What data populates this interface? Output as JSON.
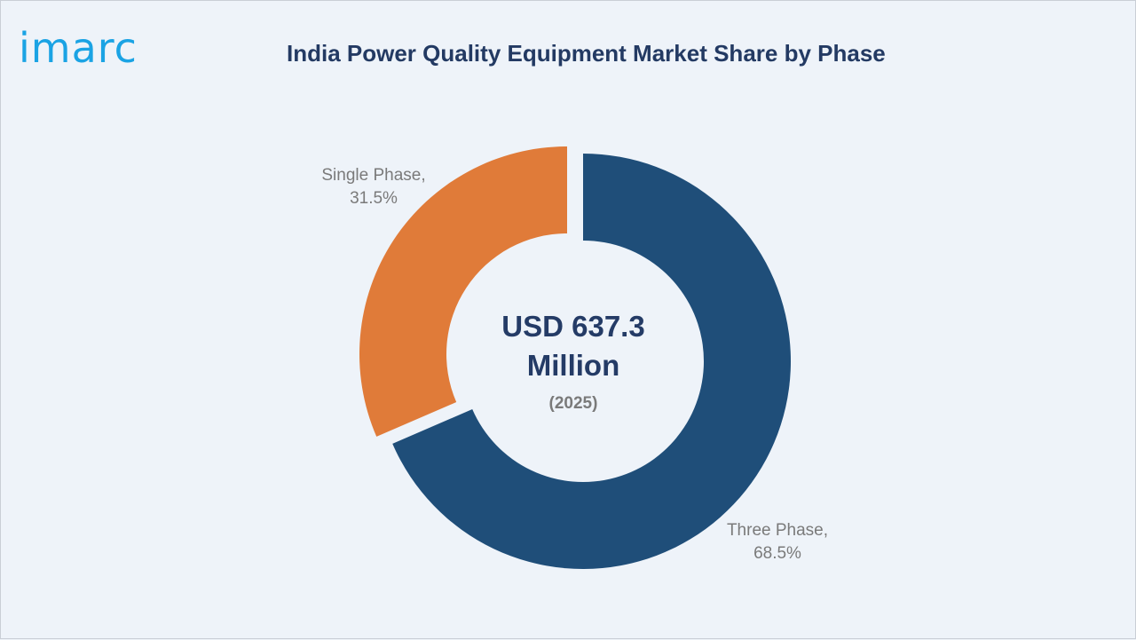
{
  "logo": {
    "text": "imarc"
  },
  "title": "India Power Quality Equipment Market Share by Phase",
  "center": {
    "line1": "USD 637.3",
    "line2": "Million",
    "year": "(2025)"
  },
  "colors": {
    "three_phase": "#1f4e79",
    "single_phase": "#e07b39"
  },
  "chart_data": {
    "type": "pie",
    "style": "donut",
    "title": "India Power Quality Equipment Market Share by Phase",
    "slices": [
      {
        "label": "Three Phase",
        "value": 68.5,
        "value_label": "68.5%",
        "color": "#1f4e79"
      },
      {
        "label": "Single Phase",
        "value": 31.5,
        "value_label": "31.5%",
        "color": "#e07b39"
      }
    ],
    "labels": {
      "three_phase": {
        "name": "Three Phase,",
        "pct": "68.5%"
      },
      "single_phase": {
        "name": "Single Phase,",
        "pct": "31.5%"
      }
    }
  }
}
